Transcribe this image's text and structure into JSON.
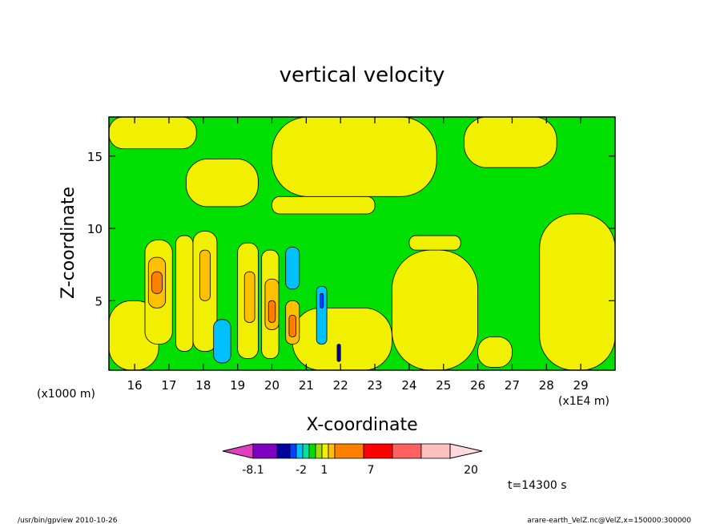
{
  "chart_data": {
    "type": "heatmap",
    "title": "vertical velocity",
    "xlabel": "X-coordinate",
    "ylabel": "Z-coordinate",
    "x_unit_left": "(x1000 m)",
    "x_unit_right": "(x1E4 m)",
    "xlim": [
      15.25,
      30.0
    ],
    "ylim": [
      0.2,
      17.7
    ],
    "x_ticks": [
      16,
      17,
      18,
      19,
      20,
      21,
      22,
      23,
      24,
      25,
      26,
      27,
      28,
      29
    ],
    "x_tick_labels": [
      "16",
      "17",
      "18",
      "19",
      "20",
      "21",
      "22",
      "23",
      "24",
      "25",
      "26",
      "27",
      "28",
      "29"
    ],
    "y_ticks": [
      5,
      10,
      15
    ],
    "y_tick_labels": [
      "5",
      "10",
      "15"
    ],
    "colorbar": {
      "labels": [
        "-8.1",
        "-2",
        "1",
        "7",
        "20"
      ],
      "colors": [
        "#e040c0",
        "#8000c0",
        "#0000a0",
        "#0040ff",
        "#00c0ff",
        "#00e0a0",
        "#00e000",
        "#a0e000",
        "#f0f000",
        "#ffc000",
        "#ff8000",
        "#ff0000",
        "#ff6060",
        "#ffc0c0",
        "#ffd8e0"
      ]
    },
    "regions": [
      {
        "level": "positive",
        "color": "#f0f000",
        "x": [
          15.25,
          16.7
        ],
        "y": [
          0.2,
          5.0
        ]
      },
      {
        "level": "positive",
        "color": "#f0f000",
        "x": [
          20.6,
          23.5
        ],
        "y": [
          0.2,
          4.5
        ]
      },
      {
        "level": "positive",
        "color": "#f0f000",
        "x": [
          23.5,
          26.0
        ],
        "y": [
          0.2,
          8.5
        ]
      },
      {
        "level": "positive",
        "color": "#f0f000",
        "x": [
          24.0,
          25.5
        ],
        "y": [
          8.5,
          9.5
        ]
      },
      {
        "level": "positive",
        "color": "#f0f000",
        "x": [
          26.0,
          27.0
        ],
        "y": [
          0.4,
          2.5
        ]
      },
      {
        "level": "positive",
        "color": "#f0f000",
        "x": [
          27.8,
          30.0
        ],
        "y": [
          0.2,
          11.0
        ]
      },
      {
        "level": "positive",
        "color": "#f0f000",
        "x": [
          15.25,
          17.8
        ],
        "y": [
          15.5,
          17.7
        ]
      },
      {
        "level": "positive",
        "color": "#f0f000",
        "x": [
          17.5,
          19.6
        ],
        "y": [
          11.5,
          14.8
        ]
      },
      {
        "level": "positive",
        "color": "#f0f000",
        "x": [
          20.0,
          23.0
        ],
        "y": [
          11.0,
          12.2
        ]
      },
      {
        "level": "positive",
        "color": "#f0f000",
        "x": [
          20.0,
          24.8
        ],
        "y": [
          12.2,
          17.7
        ]
      },
      {
        "level": "positive",
        "color": "#f0f000",
        "x": [
          25.6,
          28.3
        ],
        "y": [
          14.2,
          17.7
        ]
      },
      {
        "level": "positive",
        "color": "#f0f000",
        "x": [
          16.3,
          17.1
        ],
        "y": [
          2.0,
          9.2
        ]
      },
      {
        "level": "positive",
        "color": "#f0f000",
        "x": [
          17.2,
          17.7
        ],
        "y": [
          1.5,
          9.5
        ]
      },
      {
        "level": "positive",
        "color": "#f0f000",
        "x": [
          17.7,
          18.4
        ],
        "y": [
          1.5,
          9.8
        ]
      },
      {
        "level": "positive",
        "color": "#f0f000",
        "x": [
          19.0,
          19.6
        ],
        "y": [
          1.0,
          9.0
        ]
      },
      {
        "level": "positive",
        "color": "#f0f000",
        "x": [
          19.7,
          20.2
        ],
        "y": [
          1.0,
          8.5
        ]
      },
      {
        "level": "positive",
        "color": "#ffc000",
        "x": [
          16.4,
          16.9
        ],
        "y": [
          4.5,
          8.0
        ]
      },
      {
        "level": "positive",
        "color": "#ffc000",
        "x": [
          17.9,
          18.2
        ],
        "y": [
          5.0,
          8.5
        ]
      },
      {
        "level": "positive",
        "color": "#ffc000",
        "x": [
          19.2,
          19.5
        ],
        "y": [
          3.5,
          7.0
        ]
      },
      {
        "level": "positive",
        "color": "#ffc000",
        "x": [
          19.8,
          20.2
        ],
        "y": [
          3.0,
          6.5
        ]
      },
      {
        "level": "positive",
        "color": "#ffc000",
        "x": [
          20.4,
          20.8
        ],
        "y": [
          2.0,
          5.0
        ]
      },
      {
        "level": "positive",
        "color": "#ff8000",
        "x": [
          16.5,
          16.8
        ],
        "y": [
          5.5,
          7.0
        ]
      },
      {
        "level": "positive",
        "color": "#ff8000",
        "x": [
          19.9,
          20.1
        ],
        "y": [
          3.5,
          5.0
        ]
      },
      {
        "level": "positive",
        "color": "#ff8000",
        "x": [
          20.5,
          20.7
        ],
        "y": [
          2.5,
          4.0
        ]
      },
      {
        "level": "negative",
        "color": "#00c0ff",
        "x": [
          18.3,
          18.8
        ],
        "y": [
          0.7,
          3.7
        ]
      },
      {
        "level": "negative",
        "color": "#00c0ff",
        "x": [
          20.4,
          20.8
        ],
        "y": [
          5.8,
          8.7
        ]
      },
      {
        "level": "negative",
        "color": "#00c0ff",
        "x": [
          21.3,
          21.6
        ],
        "y": [
          2.0,
          6.0
        ]
      },
      {
        "level": "negative",
        "color": "#0040ff",
        "x": [
          21.4,
          21.5
        ],
        "y": [
          4.5,
          5.5
        ]
      },
      {
        "level": "negative",
        "color": "#0000a0",
        "x": [
          21.9,
          22.0
        ],
        "y": [
          0.8,
          2.0
        ]
      }
    ]
  },
  "colorbar_labels_text": {
    "a": "-8.1",
    "b": "-2",
    "c": "1",
    "d": "7",
    "e": "20"
  },
  "time_label": "t=14300 s",
  "footer": {
    "left": "/usr/bin/gpview   2010-10-26",
    "right": "arare-earth_VelZ.nc@VelZ,x=150000:300000"
  }
}
